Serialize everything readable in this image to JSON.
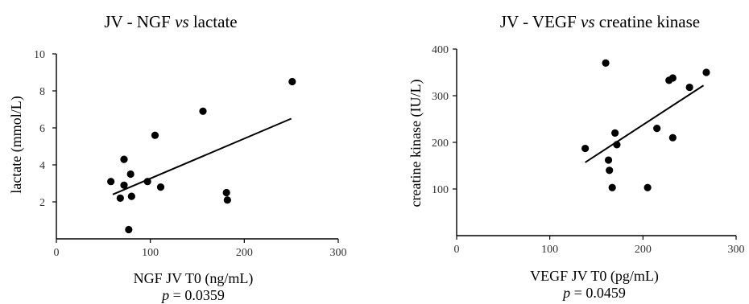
{
  "colors": {
    "ink": "#000000",
    "axis": "#000000",
    "background": "#ffffff"
  },
  "chart_data": [
    {
      "type": "scatter",
      "title": {
        "prefix": "JV - NGF ",
        "vs": "vs",
        "suffix": " lactate"
      },
      "xlabel": "NGF JV T0 (ng/mL)",
      "ylabel": "lactate (mmol/L)",
      "pvalue": {
        "p": "p",
        "rest": " = 0.0359"
      },
      "xlim": [
        0,
        300
      ],
      "ylim": [
        0,
        10
      ],
      "xticks": [
        0,
        100,
        200,
        300
      ],
      "yticks": [
        2,
        4,
        6,
        8,
        10
      ],
      "points": [
        {
          "x": 58,
          "y": 3.1
        },
        {
          "x": 68,
          "y": 2.2
        },
        {
          "x": 72,
          "y": 2.9
        },
        {
          "x": 72,
          "y": 4.3
        },
        {
          "x": 77,
          "y": 0.5
        },
        {
          "x": 79,
          "y": 3.5
        },
        {
          "x": 80,
          "y": 2.3
        },
        {
          "x": 97,
          "y": 3.1
        },
        {
          "x": 105,
          "y": 5.6
        },
        {
          "x": 111,
          "y": 2.8
        },
        {
          "x": 156,
          "y": 6.9
        },
        {
          "x": 181,
          "y": 2.5
        },
        {
          "x": 182,
          "y": 2.1
        },
        {
          "x": 251,
          "y": 8.5
        }
      ],
      "trendline": {
        "x": [
          60,
          250
        ],
        "y": [
          2.4,
          6.5
        ]
      },
      "grid": false
    },
    {
      "type": "scatter",
      "title": {
        "prefix": "JV - VEGF ",
        "vs": "vs",
        "suffix": " creatine kinase"
      },
      "xlabel": "VEGF JV T0 (pg/mL)",
      "ylabel": "creatine kinase (IU/L)",
      "pvalue": {
        "p": "p",
        "rest": " = 0.0459"
      },
      "xlim": [
        0,
        300
      ],
      "ylim": [
        0,
        400
      ],
      "xticks": [
        0,
        100,
        200,
        300
      ],
      "yticks": [
        100,
        200,
        300,
        400
      ],
      "points": [
        {
          "x": 138,
          "y": 187
        },
        {
          "x": 160,
          "y": 370
        },
        {
          "x": 163,
          "y": 162
        },
        {
          "x": 164,
          "y": 140
        },
        {
          "x": 167,
          "y": 103
        },
        {
          "x": 170,
          "y": 220
        },
        {
          "x": 172,
          "y": 195
        },
        {
          "x": 205,
          "y": 103
        },
        {
          "x": 215,
          "y": 230
        },
        {
          "x": 228,
          "y": 333
        },
        {
          "x": 232,
          "y": 338
        },
        {
          "x": 232,
          "y": 210
        },
        {
          "x": 250,
          "y": 318
        },
        {
          "x": 268,
          "y": 350
        }
      ],
      "trendline": {
        "x": [
          138,
          265
        ],
        "y": [
          157,
          322
        ]
      },
      "grid": false
    }
  ]
}
